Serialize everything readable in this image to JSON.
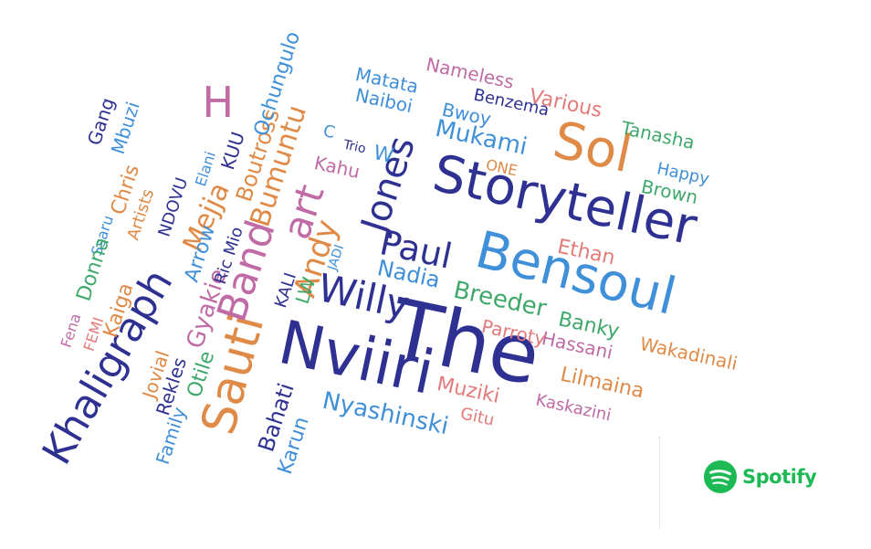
{
  "colors": {
    "navy": "#2e3192",
    "blue": "#3f8fd9",
    "orange": "#e08a47",
    "pink": "#c06aa6",
    "green": "#3fa86b",
    "salmon": "#e47a7a",
    "brand": "#1db954"
  },
  "logo": {
    "icon": "spotify-icon",
    "text": "Spotify"
  },
  "words": [
    {
      "text": "The",
      "color": "navy"
    },
    {
      "text": "Bensoul",
      "color": "blue"
    },
    {
      "text": "Storyteller",
      "color": "navy"
    },
    {
      "text": "Nviiri",
      "color": "navy"
    },
    {
      "text": "Sauti",
      "color": "orange"
    },
    {
      "text": "Khaligraph",
      "color": "navy"
    },
    {
      "text": "Sol",
      "color": "orange"
    },
    {
      "text": "Band",
      "color": "pink"
    },
    {
      "text": "art",
      "color": "pink"
    },
    {
      "text": "Jones",
      "color": "navy"
    },
    {
      "text": "Willy",
      "color": "navy"
    },
    {
      "text": "Paul",
      "color": "navy"
    },
    {
      "text": "H",
      "color": "pink"
    },
    {
      "text": "Andy",
      "color": "orange"
    },
    {
      "text": "Nyashinski",
      "color": "blue"
    },
    {
      "text": "Mejja",
      "color": "orange"
    },
    {
      "text": "Bumuntu",
      "color": "orange"
    },
    {
      "text": "Breeder",
      "color": "green"
    },
    {
      "text": "Mukami",
      "color": "blue"
    },
    {
      "text": "Nadia",
      "color": "blue"
    },
    {
      "text": "Banky",
      "color": "green"
    },
    {
      "text": "Lilmaina",
      "color": "orange"
    },
    {
      "text": "Gyakie",
      "color": "pink"
    },
    {
      "text": "Boutross",
      "color": "orange"
    },
    {
      "text": "Ochungulo",
      "color": "blue"
    },
    {
      "text": "Bahati",
      "color": "navy"
    },
    {
      "text": "Karun",
      "color": "blue"
    },
    {
      "text": "Muziki",
      "color": "salmon"
    },
    {
      "text": "Hassani",
      "color": "pink"
    },
    {
      "text": "Parroty",
      "color": "salmon"
    },
    {
      "text": "Ethan",
      "color": "salmon"
    },
    {
      "text": "Brown",
      "color": "green"
    },
    {
      "text": "Happy",
      "color": "blue"
    },
    {
      "text": "Tanasha",
      "color": "green"
    },
    {
      "text": "Various",
      "color": "salmon"
    },
    {
      "text": "Benzema",
      "color": "navy"
    },
    {
      "text": "Nameless",
      "color": "pink"
    },
    {
      "text": "Matata",
      "color": "blue"
    },
    {
      "text": "Naiboi",
      "color": "blue"
    },
    {
      "text": "Bwoy",
      "color": "blue"
    },
    {
      "text": "ONE",
      "color": "orange"
    },
    {
      "text": "Trio",
      "color": "navy"
    },
    {
      "text": "W",
      "color": "blue"
    },
    {
      "text": "C",
      "color": "blue"
    },
    {
      "text": "Kahu",
      "color": "pink"
    },
    {
      "text": "KUU",
      "color": "navy"
    },
    {
      "text": "Elani",
      "color": "blue"
    },
    {
      "text": "NDOVU",
      "color": "navy"
    },
    {
      "text": "Artists",
      "color": "orange"
    },
    {
      "text": "Chris",
      "color": "orange"
    },
    {
      "text": "Ssaru",
      "color": "blue"
    },
    {
      "text": "Donna",
      "color": "green"
    },
    {
      "text": "Kaiga",
      "color": "orange"
    },
    {
      "text": "FEMI",
      "color": "salmon"
    },
    {
      "text": "Fena",
      "color": "pink"
    },
    {
      "text": "Arrow",
      "color": "blue"
    },
    {
      "text": "Ric Mio",
      "color": "navy"
    },
    {
      "text": "KALI",
      "color": "navy"
    },
    {
      "text": "JADI",
      "color": "blue"
    },
    {
      "text": "LW",
      "color": "green"
    },
    {
      "text": "Jovial",
      "color": "orange"
    },
    {
      "text": "Rekles",
      "color": "navy"
    },
    {
      "text": "Otile",
      "color": "green"
    },
    {
      "text": "Family",
      "color": "blue"
    },
    {
      "text": "Gang",
      "color": "navy"
    },
    {
      "text": "Mbuzi",
      "color": "blue"
    },
    {
      "text": "Wakadinali",
      "color": "orange"
    },
    {
      "text": "Kaskazini",
      "color": "pink"
    },
    {
      "text": "Gitu",
      "color": "salmon"
    }
  ]
}
